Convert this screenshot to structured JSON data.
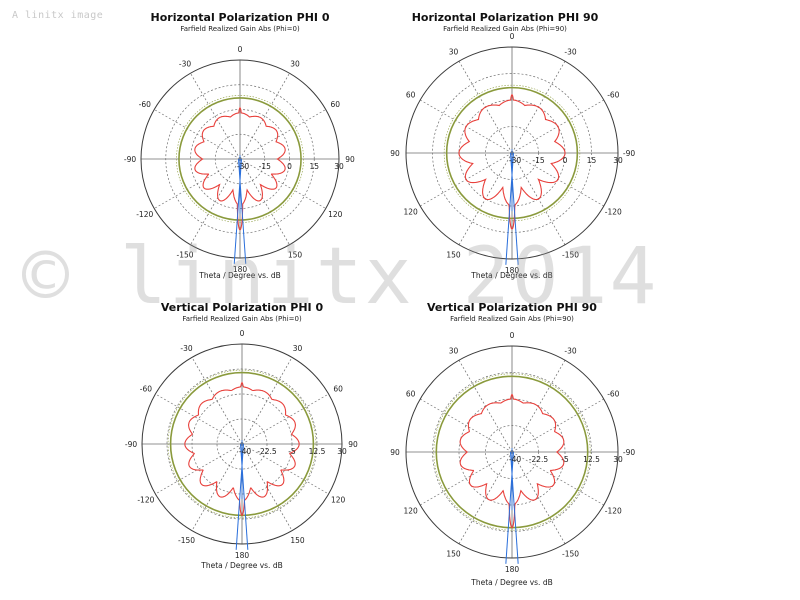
{
  "image_caption": "A linitx image",
  "watermark": "© linitx 2014",
  "colors": {
    "pattern": "#e8413c",
    "reference_circle": "#8a9a3c",
    "beam": "#2a6fdb",
    "grid": "#6d6d6d",
    "outer_ring": "#3a3a3a"
  },
  "chart_data": [
    {
      "type": "polar",
      "title": "Horizontal Polarization PHI 0",
      "subtitle": "Farfield Realized Gain Abs (Phi=0)",
      "footer": "Theta / Degree vs. dB",
      "angle_labels": [
        "0",
        "30",
        "60",
        "90",
        "120",
        "150",
        "180",
        "-150",
        "-120",
        "-90",
        "-60",
        "-30"
      ],
      "radial_labels": [
        "-30",
        "-15",
        "0",
        "15",
        "30"
      ],
      "rlim": [
        -30,
        30
      ],
      "reference_db": 7,
      "pattern": {
        "base_db": -2,
        "main_lobe_db": 13,
        "lobes": 14,
        "lobe_depth_db": 9
      }
    },
    {
      "type": "polar",
      "title": "Horizontal Polarization PHI 90",
      "subtitle": "Farfield Realized Gain Abs (Phi=90)",
      "footer": "Theta / Degree vs. dB",
      "angle_labels": [
        "0",
        "-30",
        "-60",
        "-90",
        "-120",
        "-150",
        "180",
        "150",
        "120",
        "90",
        "60",
        "30"
      ],
      "radial_labels": [
        "-30",
        "-15",
        "0",
        "15",
        "30"
      ],
      "rlim": [
        -30,
        30
      ],
      "reference_db": 7,
      "pattern": {
        "base_db": 0,
        "main_lobe_db": 13,
        "lobes": 12,
        "lobe_depth_db": 10
      }
    },
    {
      "type": "polar",
      "title": "Vertical Polarization PHI 0",
      "subtitle": "Farfield Realized Gain Abs (Phi=0)",
      "footer": "Theta / Degree vs. dB",
      "angle_labels": [
        "0",
        "30",
        "60",
        "90",
        "120",
        "150",
        "180",
        "-150",
        "-120",
        "-90",
        "-60",
        "-30"
      ],
      "radial_labels": [
        "-40",
        "-22.5",
        "-5",
        "12.5",
        "30"
      ],
      "rlim": [
        -40,
        30
      ],
      "reference_db": 10,
      "pattern": {
        "base_db": 0,
        "main_lobe_db": 10,
        "lobes": 16,
        "lobe_depth_db": 9
      }
    },
    {
      "type": "polar",
      "title": "Vertical Polarization PHI 90",
      "subtitle": "Farfield Realized Gain Abs (Phi=90)",
      "footer": "Theta / Degree vs. dB",
      "angle_labels": [
        "0",
        "-30",
        "-60",
        "-90",
        "-120",
        "-150",
        "180",
        "150",
        "120",
        "90",
        "60",
        "30"
      ],
      "radial_labels": [
        "-40",
        "-22.5",
        "-5",
        "12.5",
        "30"
      ],
      "rlim": [
        -40,
        30
      ],
      "reference_db": 10,
      "pattern": {
        "base_db": -5,
        "main_lobe_db": 10,
        "lobes": 14,
        "lobe_depth_db": 9
      }
    }
  ]
}
